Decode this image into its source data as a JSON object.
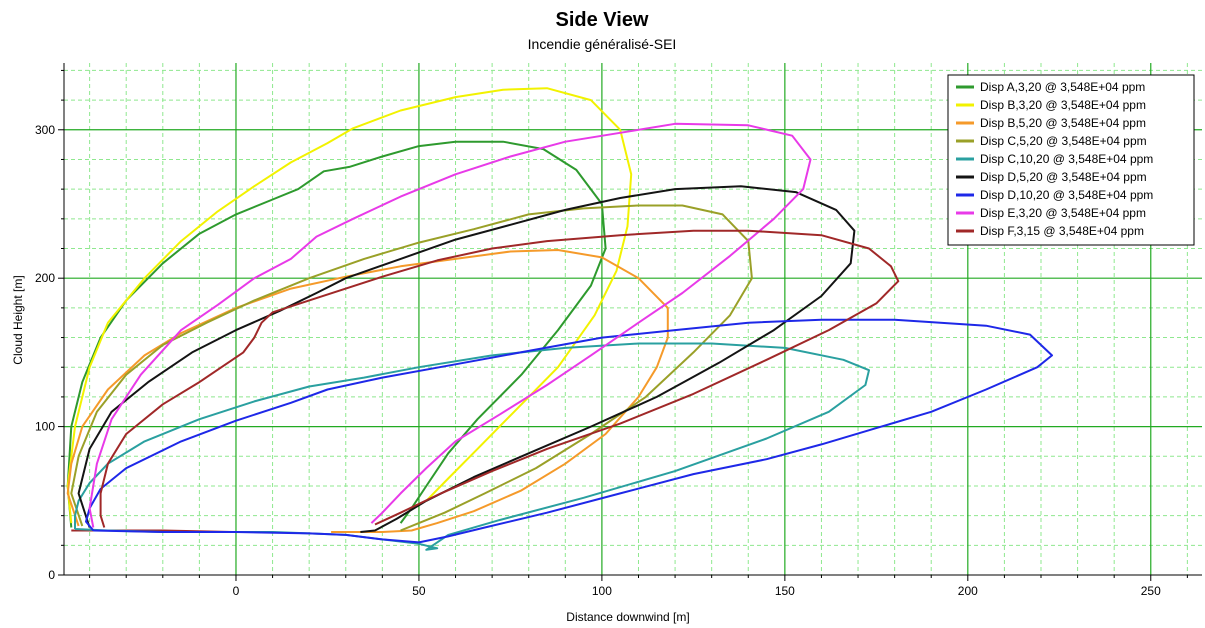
{
  "chart_data": {
    "type": "line",
    "title": "Side View",
    "subtitle": "Incendie généralisé-SEI",
    "xlabel": "Distance downwind [m]",
    "ylabel": "Cloud Height [m]",
    "xlim": [
      -47,
      264
    ],
    "ylim": [
      0,
      345
    ],
    "x_ticks": [
      0,
      50,
      100,
      150,
      200,
      250
    ],
    "y_ticks": [
      0,
      100,
      200,
      300
    ],
    "grid": true,
    "legend_position": "top-right",
    "series": [
      {
        "name": "Disp A,3,20 @ 3,548E+04 ppm",
        "color": "#2e9a2e",
        "points": [
          [
            -45,
            32
          ],
          [
            -46,
            60
          ],
          [
            -45,
            100
          ],
          [
            -42,
            130
          ],
          [
            -37,
            160
          ],
          [
            -30,
            185
          ],
          [
            -20,
            210
          ],
          [
            -10,
            230
          ],
          [
            0,
            243
          ],
          [
            10,
            253
          ],
          [
            17,
            260
          ],
          [
            24,
            272
          ],
          [
            31,
            275
          ],
          [
            40,
            282
          ],
          [
            50,
            289
          ],
          [
            60,
            292
          ],
          [
            73,
            292
          ],
          [
            84,
            287
          ],
          [
            93,
            273
          ],
          [
            100,
            250
          ],
          [
            101,
            220
          ],
          [
            97,
            195
          ],
          [
            88,
            165
          ],
          [
            78,
            135
          ],
          [
            66,
            105
          ],
          [
            58,
            82
          ],
          [
            52,
            60
          ],
          [
            48,
            45
          ],
          [
            45,
            35
          ]
        ]
      },
      {
        "name": "Disp B,3,20 @ 3,548E+04 ppm",
        "color": "#f2f200",
        "points": [
          [
            -45,
            35
          ],
          [
            -46,
            60
          ],
          [
            -44,
            100
          ],
          [
            -40,
            140
          ],
          [
            -35,
            170
          ],
          [
            -25,
            200
          ],
          [
            -15,
            225
          ],
          [
            -5,
            245
          ],
          [
            5,
            262
          ],
          [
            15,
            278
          ],
          [
            25,
            291
          ],
          [
            32,
            301
          ],
          [
            45,
            313
          ],
          [
            60,
            322
          ],
          [
            73,
            327
          ],
          [
            85,
            328
          ],
          [
            97,
            320
          ],
          [
            105,
            300
          ],
          [
            108,
            270
          ],
          [
            107,
            235
          ],
          [
            104,
            205
          ],
          [
            98,
            175
          ],
          [
            88,
            140
          ],
          [
            76,
            110
          ],
          [
            66,
            85
          ],
          [
            58,
            65
          ],
          [
            52,
            50
          ]
        ]
      },
      {
        "name": "Disp B,5,20 @ 3,548E+04 ppm",
        "color": "#f59a2a",
        "points": [
          [
            -43,
            33
          ],
          [
            -46,
            55
          ],
          [
            -45,
            75
          ],
          [
            -42,
            100
          ],
          [
            -35,
            125
          ],
          [
            -25,
            148
          ],
          [
            -15,
            163
          ],
          [
            0,
            180
          ],
          [
            15,
            193
          ],
          [
            30,
            201
          ],
          [
            45,
            208
          ],
          [
            60,
            213
          ],
          [
            75,
            218
          ],
          [
            88,
            219
          ],
          [
            100,
            214
          ],
          [
            110,
            200
          ],
          [
            118,
            180
          ],
          [
            118,
            160
          ],
          [
            115,
            140
          ],
          [
            110,
            120
          ],
          [
            101,
            95
          ],
          [
            90,
            75
          ],
          [
            78,
            57
          ],
          [
            65,
            43
          ],
          [
            55,
            35
          ],
          [
            48,
            30
          ],
          [
            40,
            29
          ],
          [
            26,
            29
          ]
        ]
      },
      {
        "name": "Disp C,5,20 @ 3,548E+04 ppm",
        "color": "#9aa028",
        "points": [
          [
            -42,
            33
          ],
          [
            -45,
            55
          ],
          [
            -43,
            80
          ],
          [
            -38,
            110
          ],
          [
            -30,
            135
          ],
          [
            -20,
            155
          ],
          [
            -8,
            170
          ],
          [
            5,
            185
          ],
          [
            20,
            200
          ],
          [
            35,
            213
          ],
          [
            50,
            224
          ],
          [
            65,
            233
          ],
          [
            80,
            243
          ],
          [
            95,
            247
          ],
          [
            110,
            249
          ],
          [
            122,
            249
          ],
          [
            133,
            243
          ],
          [
            140,
            225
          ],
          [
            141,
            200
          ],
          [
            135,
            175
          ],
          [
            125,
            150
          ],
          [
            112,
            120
          ],
          [
            97,
            95
          ],
          [
            82,
            72
          ],
          [
            68,
            55
          ],
          [
            57,
            42
          ],
          [
            50,
            35
          ],
          [
            45,
            30
          ]
        ]
      },
      {
        "name": "Disp C,10,20 @ 3,548E+04 ppm",
        "color": "#2aa0a0",
        "points": [
          [
            -44,
            31
          ],
          [
            -44,
            40
          ],
          [
            -43,
            50
          ],
          [
            -40,
            62
          ],
          [
            -35,
            75
          ],
          [
            -25,
            90
          ],
          [
            -10,
            105
          ],
          [
            5,
            117
          ],
          [
            20,
            127
          ],
          [
            35,
            133
          ],
          [
            50,
            140
          ],
          [
            70,
            148
          ],
          [
            90,
            153
          ],
          [
            110,
            156
          ],
          [
            130,
            156
          ],
          [
            150,
            153
          ],
          [
            166,
            145
          ],
          [
            173,
            138
          ],
          [
            172,
            128
          ],
          [
            162,
            110
          ],
          [
            145,
            92
          ],
          [
            120,
            70
          ],
          [
            95,
            52
          ],
          [
            72,
            37
          ],
          [
            58,
            27
          ],
          [
            52,
            17
          ],
          [
            55,
            18
          ],
          [
            50,
            21
          ],
          [
            40,
            24
          ],
          [
            30,
            27
          ],
          [
            20,
            28
          ],
          [
            10,
            29
          ],
          [
            0,
            29
          ],
          [
            -20,
            29
          ],
          [
            -35,
            30
          ],
          [
            -44,
            31
          ]
        ]
      },
      {
        "name": "Disp D,5,20 @ 3,548E+04 ppm",
        "color": "#141414",
        "points": [
          [
            -40,
            32
          ],
          [
            -43,
            55
          ],
          [
            -40,
            85
          ],
          [
            -34,
            110
          ],
          [
            -24,
            130
          ],
          [
            -12,
            150
          ],
          [
            0,
            165
          ],
          [
            12,
            178
          ],
          [
            22,
            190
          ],
          [
            30,
            200
          ],
          [
            45,
            213
          ],
          [
            60,
            226
          ],
          [
            75,
            236
          ],
          [
            90,
            246
          ],
          [
            105,
            254
          ],
          [
            120,
            260
          ],
          [
            138,
            262
          ],
          [
            153,
            258
          ],
          [
            164,
            246
          ],
          [
            169,
            232
          ],
          [
            168,
            210
          ],
          [
            160,
            188
          ],
          [
            147,
            165
          ],
          [
            132,
            143
          ],
          [
            115,
            120
          ],
          [
            97,
            100
          ],
          [
            80,
            82
          ],
          [
            65,
            66
          ],
          [
            52,
            50
          ],
          [
            44,
            38
          ],
          [
            38,
            30
          ],
          [
            34,
            29
          ]
        ]
      },
      {
        "name": "Disp D,10,20 @ 3,548E+04 ppm",
        "color": "#1e28e8",
        "points": [
          [
            -39,
            30
          ],
          [
            -41,
            36
          ],
          [
            -40,
            45
          ],
          [
            -37,
            58
          ],
          [
            -30,
            72
          ],
          [
            -15,
            90
          ],
          [
            0,
            104
          ],
          [
            15,
            116
          ],
          [
            25,
            125
          ],
          [
            40,
            133
          ],
          [
            60,
            142
          ],
          [
            80,
            151
          ],
          [
            100,
            160
          ],
          [
            120,
            165
          ],
          [
            140,
            170
          ],
          [
            160,
            172
          ],
          [
            180,
            172
          ],
          [
            205,
            168
          ],
          [
            217,
            162
          ],
          [
            223,
            148
          ],
          [
            219,
            140
          ],
          [
            205,
            125
          ],
          [
            190,
            110
          ],
          [
            175,
            99
          ],
          [
            160,
            88
          ],
          [
            145,
            78
          ],
          [
            125,
            68
          ],
          [
            105,
            55
          ],
          [
            85,
            42
          ],
          [
            68,
            32
          ],
          [
            58,
            26
          ],
          [
            50,
            22
          ],
          [
            40,
            24
          ],
          [
            30,
            27
          ],
          [
            20,
            28
          ],
          [
            0,
            29
          ],
          [
            -20,
            29
          ],
          [
            -39,
            30
          ]
        ]
      },
      {
        "name": "Disp E,3,20 @ 3,548E+04 ppm",
        "color": "#e83ae8",
        "points": [
          [
            -39,
            32
          ],
          [
            -40,
            45
          ],
          [
            -38,
            75
          ],
          [
            -34,
            105
          ],
          [
            -26,
            135
          ],
          [
            -15,
            165
          ],
          [
            -5,
            182
          ],
          [
            5,
            200
          ],
          [
            15,
            213
          ],
          [
            22,
            228
          ],
          [
            32,
            240
          ],
          [
            45,
            255
          ],
          [
            60,
            270
          ],
          [
            75,
            282
          ],
          [
            90,
            292
          ],
          [
            105,
            298
          ],
          [
            120,
            304
          ],
          [
            140,
            303
          ],
          [
            152,
            296
          ],
          [
            157,
            280
          ],
          [
            155,
            260
          ],
          [
            147,
            240
          ],
          [
            135,
            215
          ],
          [
            122,
            190
          ],
          [
            110,
            170
          ],
          [
            97,
            148
          ],
          [
            85,
            128
          ],
          [
            72,
            108
          ],
          [
            60,
            90
          ],
          [
            52,
            72
          ],
          [
            45,
            55
          ],
          [
            40,
            42
          ],
          [
            37,
            35
          ]
        ]
      },
      {
        "name": "Disp F,3,15 @ 3,548E+04 ppm",
        "color": "#a02828",
        "points": [
          [
            -36,
            32
          ],
          [
            -37,
            40
          ],
          [
            -37,
            55
          ],
          [
            -35,
            75
          ],
          [
            -30,
            95
          ],
          [
            -20,
            115
          ],
          [
            -10,
            130
          ],
          [
            2,
            150
          ],
          [
            5,
            160
          ],
          [
            7,
            170
          ],
          [
            10,
            177
          ],
          [
            20,
            185
          ],
          [
            30,
            193
          ],
          [
            40,
            201
          ],
          [
            55,
            212
          ],
          [
            70,
            220
          ],
          [
            85,
            225
          ],
          [
            105,
            229
          ],
          [
            125,
            232
          ],
          [
            140,
            232
          ],
          [
            160,
            229
          ],
          [
            173,
            220
          ],
          [
            179,
            208
          ],
          [
            181,
            198
          ],
          [
            175,
            183
          ],
          [
            162,
            165
          ],
          [
            145,
            145
          ],
          [
            125,
            122
          ],
          [
            105,
            102
          ],
          [
            85,
            85
          ],
          [
            70,
            70
          ],
          [
            56,
            55
          ],
          [
            45,
            42
          ],
          [
            38,
            34
          ]
        ]
      }
    ],
    "base_line": {
      "color": "#a02828",
      "points": [
        [
          -45,
          30
        ],
        [
          -20,
          30
        ],
        [
          -1,
          29
        ]
      ]
    }
  }
}
